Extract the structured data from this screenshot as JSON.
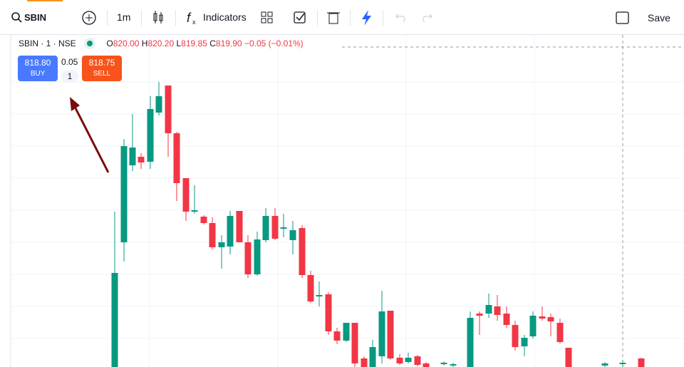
{
  "toolbar": {
    "symbol": "SBIN",
    "interval": "1m",
    "indicators": "Indicators",
    "save": "Save"
  },
  "legend": {
    "instrument": "SBIN · 1 · NSE",
    "open_label": "O",
    "open": "820.00",
    "high_label": "H",
    "high": "820.20",
    "low_label": "L",
    "low": "819.85",
    "close_label": "C",
    "close": "819.90",
    "change": "−0.05 (−0.01%)"
  },
  "trade": {
    "buy_price": "818.80",
    "buy": "BUY",
    "spread": "0.05",
    "quantity": "1",
    "sell_price": "818.75",
    "sell": "SELL"
  }
}
